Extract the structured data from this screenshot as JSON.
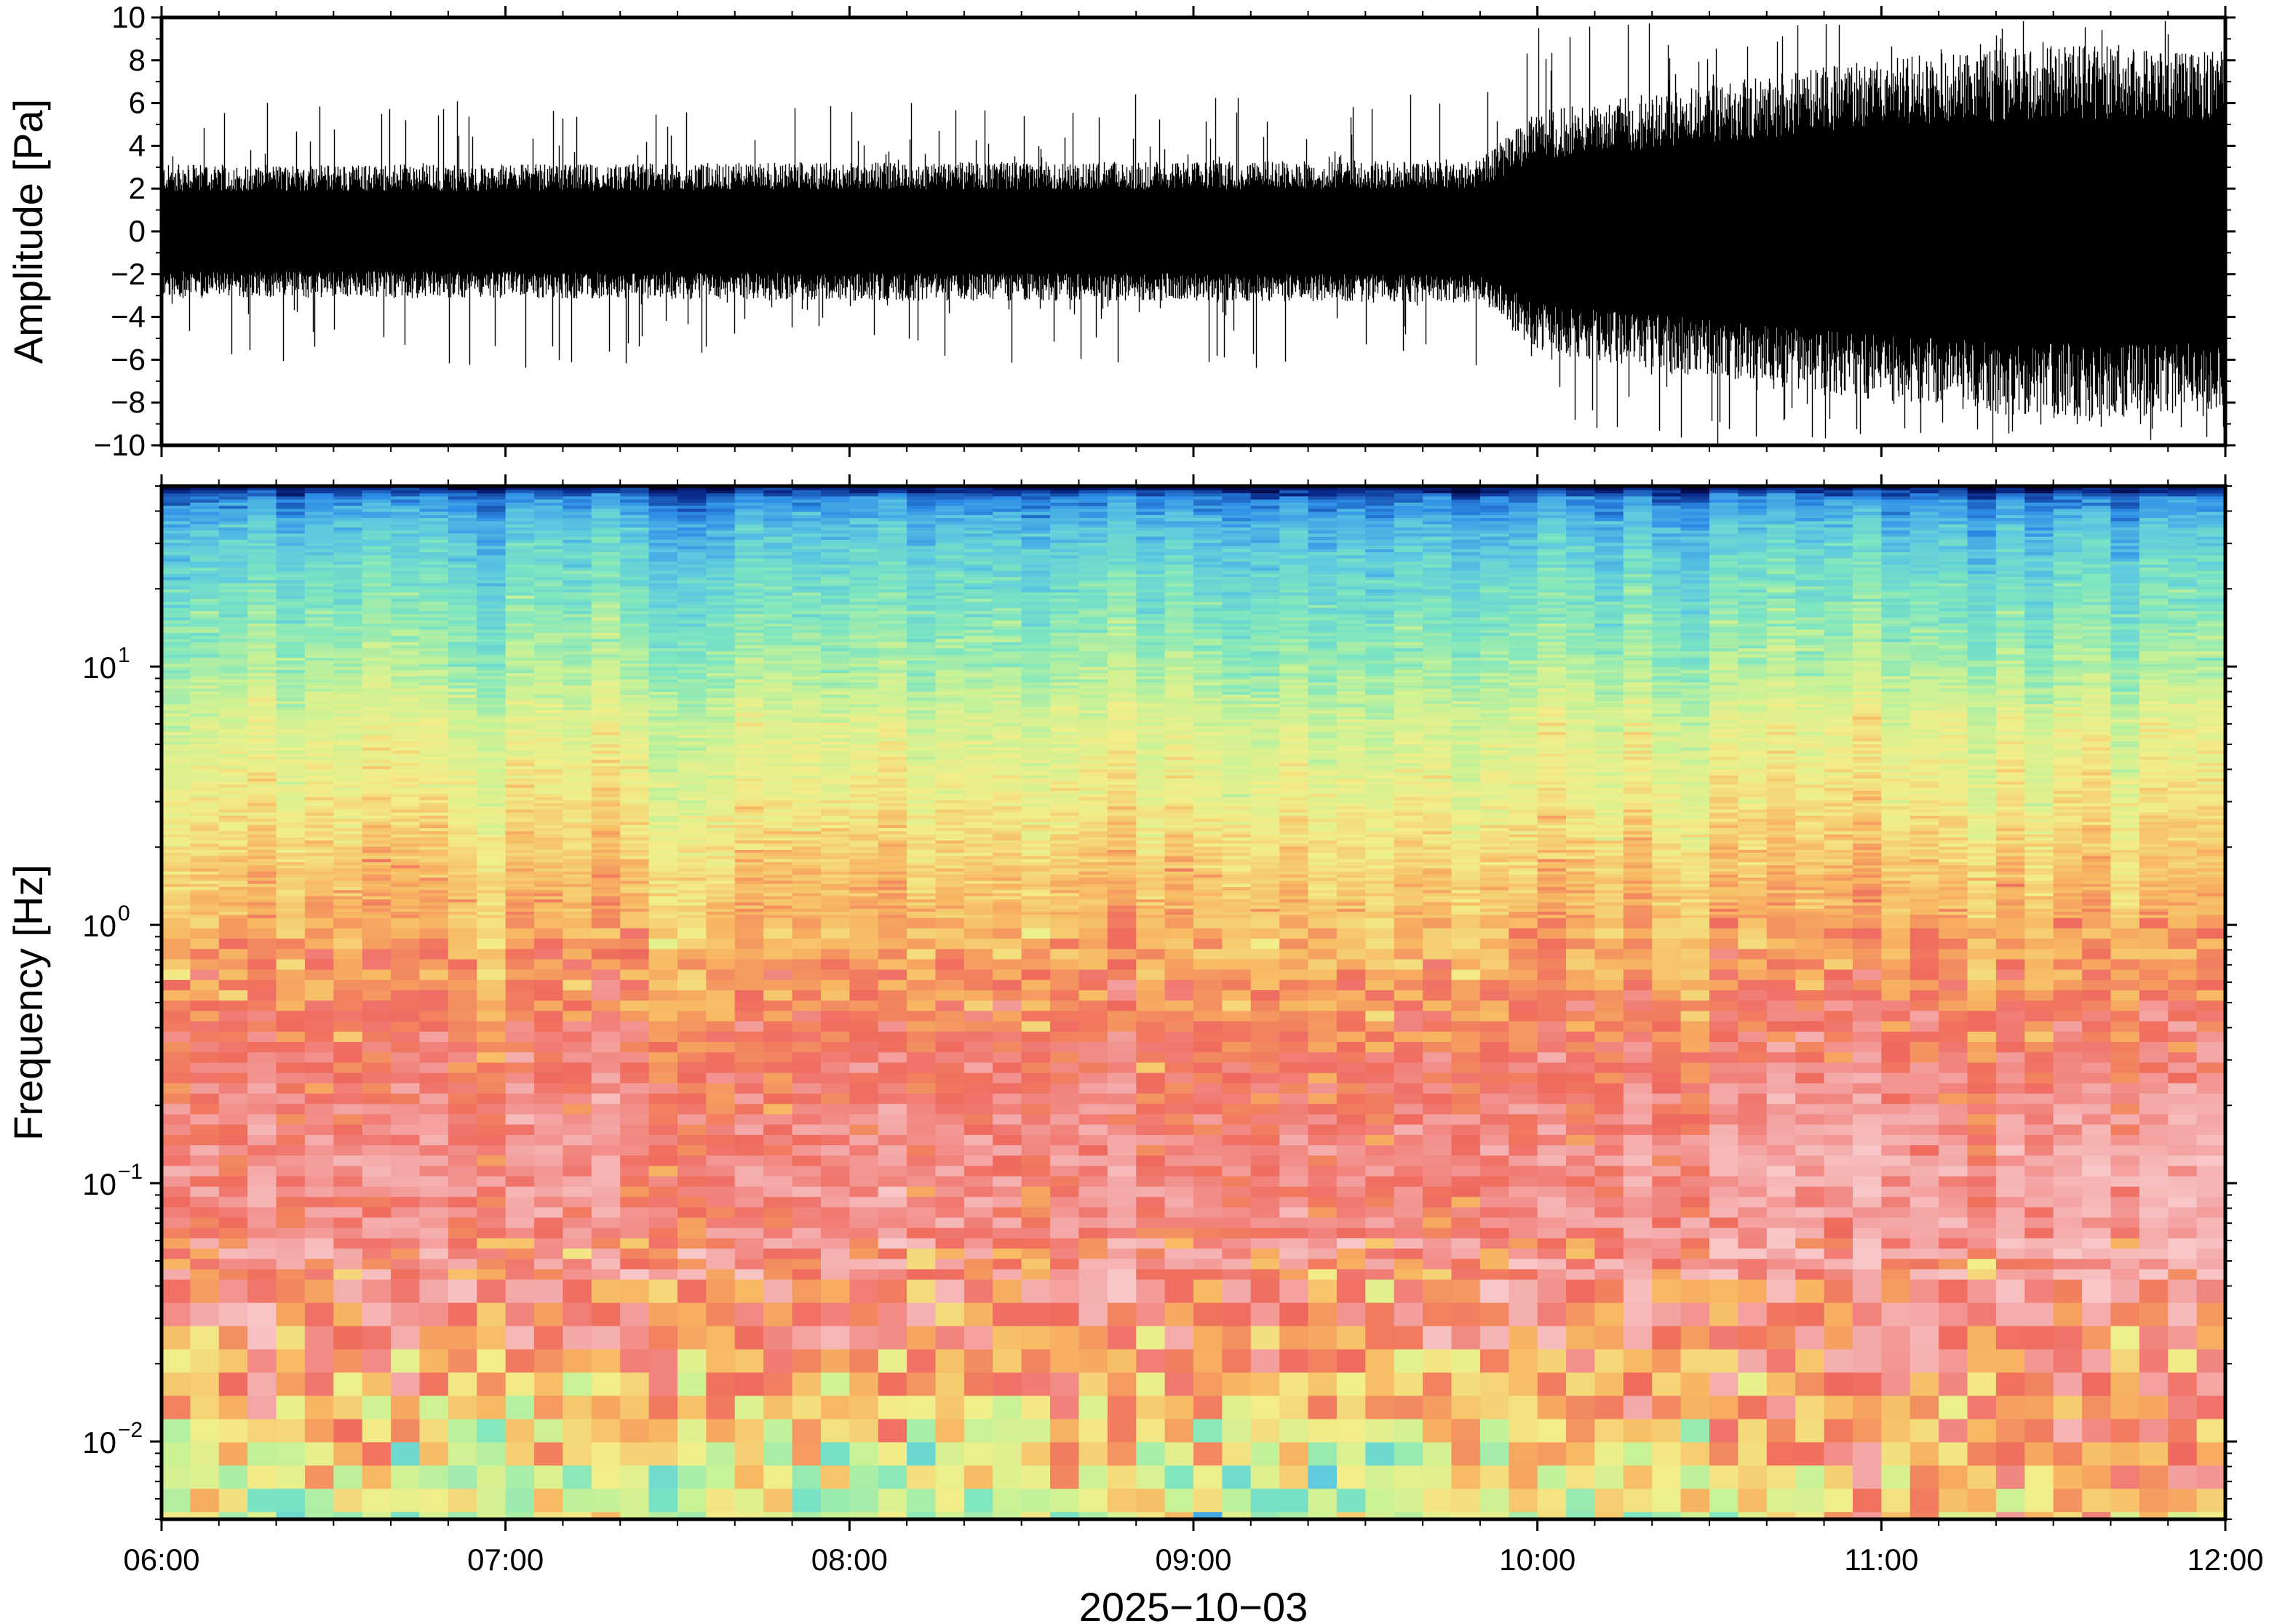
{
  "chart_data": [
    {
      "type": "line",
      "ylabel": "Amplitude [Pa]",
      "ylim": [
        -10,
        10
      ],
      "yticks": [
        10,
        8,
        6,
        4,
        2,
        0,
        -2,
        -4,
        -6,
        -8,
        -10
      ],
      "ytick_labels": [
        "10",
        "8",
        "6",
        "4",
        "2",
        "0",
        "−2",
        "−4",
        "−6",
        "−8",
        "−10"
      ],
      "xlim": [
        "06:00",
        "12:00"
      ],
      "series": [
        {
          "color": "#000000",
          "envelope": {
            "x": [
              "06:00",
              "07:00",
              "08:00",
              "09:00",
              "09:50",
              "10:00",
              "10:30",
              "11:00",
              "11:30",
              "12:00"
            ],
            "typical_abs": [
              2.5,
              2.5,
              2.6,
              2.6,
              2.7,
              4.5,
              5.5,
              6.5,
              7.0,
              7.0
            ],
            "peak_abs": [
              6.0,
              6.5,
              6.0,
              6.5,
              6.5,
              9.5,
              10,
              10,
              10,
              10
            ]
          }
        }
      ]
    },
    {
      "type": "heatmap",
      "ylabel": "Frequency [Hz]",
      "xlabel": "2025−10−03",
      "yscale": "log",
      "ylim": [
        0.005,
        50
      ],
      "yticks": [
        {
          "value": 10,
          "base": "10",
          "exp": "1"
        },
        {
          "value": 1,
          "base": "10",
          "exp": "0"
        },
        {
          "value": 0.1,
          "base": "10",
          "exp": "−1"
        },
        {
          "value": 0.01,
          "base": "10",
          "exp": "−2"
        }
      ],
      "xticks": [
        "06:00",
        "07:00",
        "08:00",
        "09:00",
        "10:00",
        "11:00",
        "12:00"
      ],
      "xlim": [
        "06:00",
        "12:00"
      ],
      "colormap": [
        "#000033",
        "#0a2a8c",
        "#2e8ee8",
        "#5dc9e0",
        "#7ee6c0",
        "#c8f296",
        "#f2ee8a",
        "#f8b862",
        "#ef6a5e",
        "#f4a6a6",
        "#f8c6c6"
      ],
      "band_profile": {
        "freq_hz": [
          0.005,
          0.008,
          0.013,
          0.02,
          0.03,
          0.05,
          0.08,
          0.12,
          0.2,
          0.35,
          0.5,
          0.8,
          1.5,
          3,
          6,
          10,
          20,
          35,
          45,
          50
        ],
        "level_start": [
          5.2,
          5.8,
          6.6,
          7.4,
          8.1,
          8.3,
          8.4,
          8.6,
          8.3,
          8.0,
          7.6,
          7.2,
          6.8,
          6.0,
          5.5,
          4.6,
          3.8,
          2.9,
          2.0,
          0.5
        ],
        "level_end": [
          7.5,
          7.8,
          8.1,
          8.2,
          8.4,
          8.9,
          9.3,
          9.5,
          8.9,
          8.2,
          8.0,
          7.4,
          6.9,
          6.2,
          5.8,
          4.7,
          3.9,
          3.0,
          2.0,
          0.5
        ]
      }
    }
  ]
}
